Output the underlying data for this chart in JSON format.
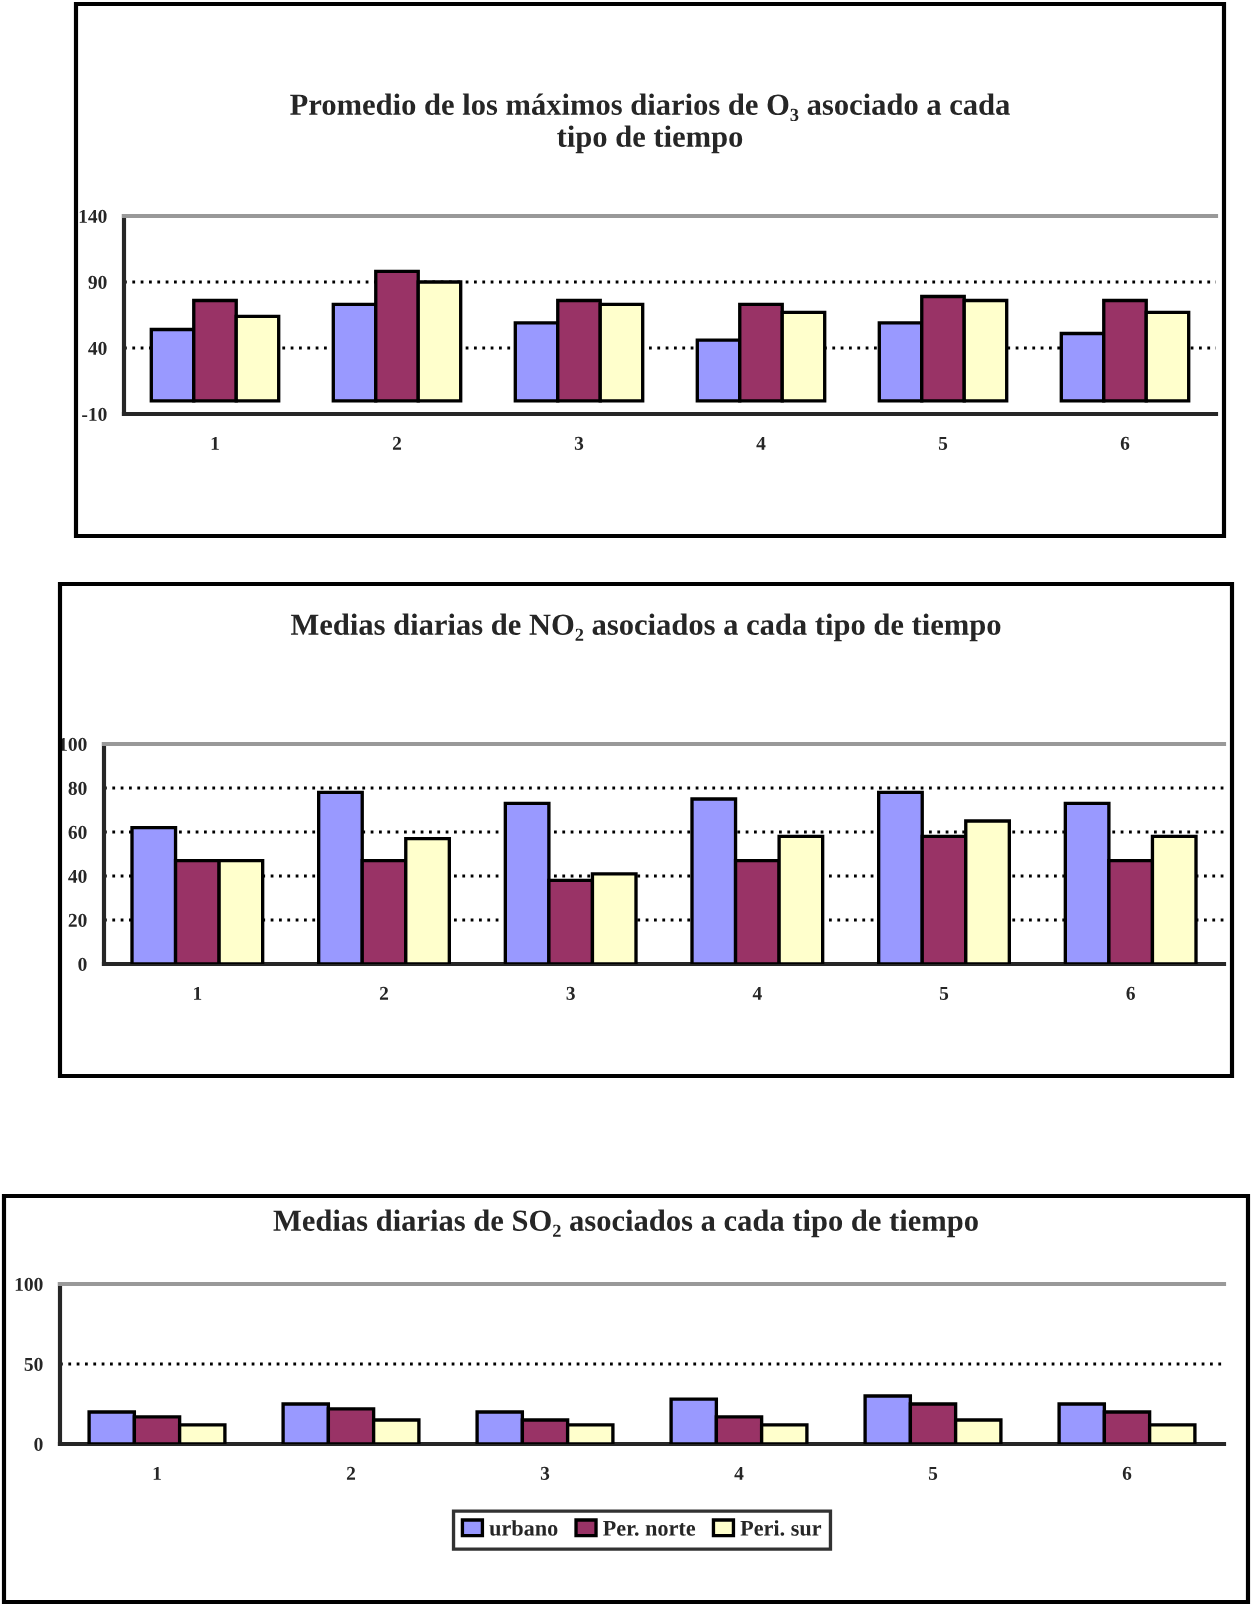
{
  "chart_data": [
    {
      "type": "bar",
      "title": "Promedio de los máximos diarios de O₃ asociado a cada\ntipo de tiempo",
      "categories": [
        "1",
        "2",
        "3",
        "4",
        "5",
        "6"
      ],
      "series": [
        {
          "color": "#9999ff",
          "values": [
            54,
            73,
            59,
            46,
            59,
            51
          ]
        },
        {
          "color": "#993366",
          "values": [
            76,
            98,
            76,
            73,
            79,
            76
          ]
        },
        {
          "color": "#ffffcc",
          "values": [
            64,
            90,
            73,
            67,
            76,
            67
          ]
        }
      ],
      "ylim": [
        -10,
        140
      ],
      "yticks": [
        -10,
        40,
        90,
        140
      ],
      "grid": "y"
    },
    {
      "type": "bar",
      "title": "Medias diarias de NO₂ asociados a cada tipo de tiempo",
      "categories": [
        "1",
        "2",
        "3",
        "4",
        "5",
        "6"
      ],
      "series": [
        {
          "color": "#9999ff",
          "values": [
            62,
            78,
            73,
            75,
            78,
            73
          ]
        },
        {
          "color": "#993366",
          "values": [
            47,
            47,
            38,
            47,
            58,
            47
          ]
        },
        {
          "color": "#ffffcc",
          "values": [
            47,
            57,
            41,
            58,
            65,
            58
          ]
        }
      ],
      "ylim": [
        0,
        100
      ],
      "yticks": [
        0,
        20,
        40,
        60,
        80,
        100
      ],
      "grid": "y"
    },
    {
      "type": "bar",
      "title": "Medias diarias de SO₂ asociados a cada tipo de tiempo",
      "categories": [
        "1",
        "2",
        "3",
        "4",
        "5",
        "6"
      ],
      "series": [
        {
          "name": "urbano",
          "color": "#9999ff",
          "values": [
            20,
            25,
            20,
            28,
            30,
            25
          ]
        },
        {
          "name": "Per. norte",
          "color": "#993366",
          "values": [
            17,
            22,
            15,
            17,
            25,
            20
          ]
        },
        {
          "name": "Peri. sur",
          "color": "#ffffcc",
          "values": [
            12,
            15,
            12,
            12,
            15,
            12
          ]
        }
      ],
      "ylim": [
        0,
        100
      ],
      "yticks": [
        0,
        50,
        100
      ],
      "grid": "y",
      "legend": "bottom"
    }
  ]
}
